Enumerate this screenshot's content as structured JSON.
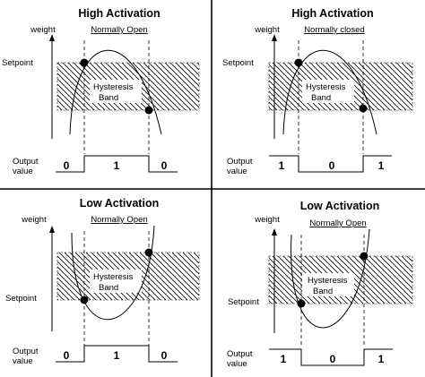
{
  "axis_weight": "weight",
  "setpoint_label": "Setpoint",
  "band_label_1": "Hysteresis",
  "band_label_2": "Band",
  "output_label_1": "Output",
  "output_label_2": "value",
  "panels": [
    {
      "title": "High Activation",
      "mode": "Normally Open",
      "outputs": [
        "0",
        "1",
        "0"
      ]
    },
    {
      "title": "High Activation",
      "mode": "Normally closed",
      "outputs": [
        "1",
        "0",
        "1"
      ]
    },
    {
      "title": "Low Activation",
      "mode": "Normally Open",
      "outputs": [
        "0",
        "1",
        "0"
      ]
    },
    {
      "title": "Low Activation",
      "mode": "Normally Open",
      "outputs": [
        "1",
        "0",
        "1"
      ]
    }
  ]
}
